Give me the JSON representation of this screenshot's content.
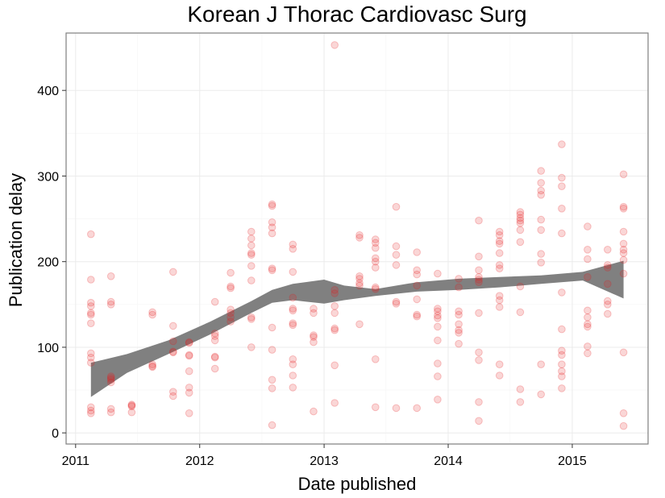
{
  "chart_data": {
    "type": "scatter",
    "title": "Korean J Thorac Cardiovasc Surg",
    "xlabel": "Date published",
    "ylabel": "Publication delay",
    "x_ticks": [
      "2011",
      "2012",
      "2013",
      "2014",
      "2015"
    ],
    "y_ticks": [
      0,
      100,
      200,
      300,
      400
    ],
    "xlim": [
      "2010-12-04",
      "2015-08-12"
    ],
    "ylim": [
      -13,
      467
    ],
    "grid": true,
    "colors": {
      "points": "#e41a1c",
      "smooth_band": "#808080",
      "panel_border": "#7f7f7f",
      "grid_major": "#ebebeb",
      "grid_minor": "#f5f5f5"
    },
    "points_alpha": 0.18,
    "points": [
      {
        "x": "2011-02-15",
        "y": 232
      },
      {
        "x": "2011-02-15",
        "y": 179
      },
      {
        "x": "2011-02-15",
        "y": 152
      },
      {
        "x": "2011-02-15",
        "y": 148
      },
      {
        "x": "2011-02-15",
        "y": 140
      },
      {
        "x": "2011-02-15",
        "y": 138
      },
      {
        "x": "2011-02-15",
        "y": 128
      },
      {
        "x": "2011-02-15",
        "y": 93
      },
      {
        "x": "2011-02-15",
        "y": 88
      },
      {
        "x": "2011-02-15",
        "y": 82
      },
      {
        "x": "2011-02-15",
        "y": 30
      },
      {
        "x": "2011-02-15",
        "y": 26
      },
      {
        "x": "2011-02-15",
        "y": 23
      },
      {
        "x": "2011-04-15",
        "y": 183
      },
      {
        "x": "2011-04-15",
        "y": 153
      },
      {
        "x": "2011-04-15",
        "y": 150
      },
      {
        "x": "2011-04-15",
        "y": 66
      },
      {
        "x": "2011-04-15",
        "y": 64
      },
      {
        "x": "2011-04-15",
        "y": 62
      },
      {
        "x": "2011-04-15",
        "y": 59
      },
      {
        "x": "2011-04-15",
        "y": 28
      },
      {
        "x": "2011-04-15",
        "y": 24
      },
      {
        "x": "2011-06-15",
        "y": 33
      },
      {
        "x": "2011-06-15",
        "y": 31
      },
      {
        "x": "2011-06-15",
        "y": 32
      },
      {
        "x": "2011-06-15",
        "y": 24
      },
      {
        "x": "2011-08-15",
        "y": 141
      },
      {
        "x": "2011-08-15",
        "y": 138
      },
      {
        "x": "2011-08-15",
        "y": 80
      },
      {
        "x": "2011-08-15",
        "y": 78
      },
      {
        "x": "2011-08-15",
        "y": 77
      },
      {
        "x": "2011-10-15",
        "y": 188
      },
      {
        "x": "2011-10-15",
        "y": 125
      },
      {
        "x": "2011-10-15",
        "y": 107
      },
      {
        "x": "2011-10-15",
        "y": 95
      },
      {
        "x": "2011-10-15",
        "y": 94
      },
      {
        "x": "2011-10-15",
        "y": 48
      },
      {
        "x": "2011-10-15",
        "y": 43
      },
      {
        "x": "2011-12-01",
        "y": 106
      },
      {
        "x": "2011-12-01",
        "y": 105
      },
      {
        "x": "2011-12-01",
        "y": 91
      },
      {
        "x": "2011-12-01",
        "y": 90
      },
      {
        "x": "2011-12-01",
        "y": 72
      },
      {
        "x": "2011-12-01",
        "y": 53
      },
      {
        "x": "2011-12-01",
        "y": 47
      },
      {
        "x": "2011-12-01",
        "y": 23
      },
      {
        "x": "2012-02-15",
        "y": 153
      },
      {
        "x": "2012-02-15",
        "y": 116
      },
      {
        "x": "2012-02-15",
        "y": 113
      },
      {
        "x": "2012-02-15",
        "y": 108
      },
      {
        "x": "2012-02-15",
        "y": 89
      },
      {
        "x": "2012-02-15",
        "y": 88
      },
      {
        "x": "2012-02-15",
        "y": 75
      },
      {
        "x": "2012-04-01",
        "y": 187
      },
      {
        "x": "2012-04-01",
        "y": 171
      },
      {
        "x": "2012-04-01",
        "y": 169
      },
      {
        "x": "2012-04-01",
        "y": 144
      },
      {
        "x": "2012-04-01",
        "y": 140
      },
      {
        "x": "2012-04-01",
        "y": 135
      },
      {
        "x": "2012-04-01",
        "y": 130
      },
      {
        "x": "2012-06-01",
        "y": 235
      },
      {
        "x": "2012-06-01",
        "y": 227
      },
      {
        "x": "2012-06-01",
        "y": 219
      },
      {
        "x": "2012-06-01",
        "y": 210
      },
      {
        "x": "2012-06-01",
        "y": 208
      },
      {
        "x": "2012-06-01",
        "y": 195
      },
      {
        "x": "2012-06-01",
        "y": 178
      },
      {
        "x": "2012-06-01",
        "y": 135
      },
      {
        "x": "2012-06-01",
        "y": 133
      },
      {
        "x": "2012-06-01",
        "y": 100
      },
      {
        "x": "2012-08-01",
        "y": 267
      },
      {
        "x": "2012-08-01",
        "y": 265
      },
      {
        "x": "2012-08-01",
        "y": 246
      },
      {
        "x": "2012-08-01",
        "y": 240
      },
      {
        "x": "2012-08-01",
        "y": 233
      },
      {
        "x": "2012-08-01",
        "y": 192
      },
      {
        "x": "2012-08-01",
        "y": 190
      },
      {
        "x": "2012-08-01",
        "y": 123
      },
      {
        "x": "2012-08-01",
        "y": 97
      },
      {
        "x": "2012-08-01",
        "y": 62
      },
      {
        "x": "2012-08-01",
        "y": 52
      },
      {
        "x": "2012-08-01",
        "y": 9
      },
      {
        "x": "2012-10-01",
        "y": 220
      },
      {
        "x": "2012-10-01",
        "y": 215
      },
      {
        "x": "2012-10-01",
        "y": 188
      },
      {
        "x": "2012-10-01",
        "y": 158
      },
      {
        "x": "2012-10-01",
        "y": 145
      },
      {
        "x": "2012-10-01",
        "y": 143
      },
      {
        "x": "2012-10-01",
        "y": 128
      },
      {
        "x": "2012-10-01",
        "y": 126
      },
      {
        "x": "2012-10-01",
        "y": 86
      },
      {
        "x": "2012-10-01",
        "y": 80
      },
      {
        "x": "2012-10-01",
        "y": 67
      },
      {
        "x": "2012-10-01",
        "y": 53
      },
      {
        "x": "2012-12-01",
        "y": 145
      },
      {
        "x": "2012-12-01",
        "y": 140
      },
      {
        "x": "2012-12-01",
        "y": 114
      },
      {
        "x": "2012-12-01",
        "y": 112
      },
      {
        "x": "2012-12-01",
        "y": 106
      },
      {
        "x": "2012-12-01",
        "y": 25
      },
      {
        "x": "2013-02-01",
        "y": 453
      },
      {
        "x": "2013-02-01",
        "y": 167
      },
      {
        "x": "2013-02-01",
        "y": 163
      },
      {
        "x": "2013-02-01",
        "y": 148
      },
      {
        "x": "2013-02-01",
        "y": 140
      },
      {
        "x": "2013-02-01",
        "y": 122
      },
      {
        "x": "2013-02-01",
        "y": 120
      },
      {
        "x": "2013-02-01",
        "y": 79
      },
      {
        "x": "2013-02-01",
        "y": 35
      },
      {
        "x": "2013-04-15",
        "y": 231
      },
      {
        "x": "2013-04-15",
        "y": 228
      },
      {
        "x": "2013-04-15",
        "y": 183
      },
      {
        "x": "2013-04-15",
        "y": 180
      },
      {
        "x": "2013-04-15",
        "y": 175
      },
      {
        "x": "2013-04-15",
        "y": 172
      },
      {
        "x": "2013-04-15",
        "y": 127
      },
      {
        "x": "2013-06-01",
        "y": 226
      },
      {
        "x": "2013-06-01",
        "y": 222
      },
      {
        "x": "2013-06-01",
        "y": 216
      },
      {
        "x": "2013-06-01",
        "y": 204
      },
      {
        "x": "2013-06-01",
        "y": 200
      },
      {
        "x": "2013-06-01",
        "y": 193
      },
      {
        "x": "2013-06-01",
        "y": 170
      },
      {
        "x": "2013-06-01",
        "y": 168
      },
      {
        "x": "2013-06-01",
        "y": 86
      },
      {
        "x": "2013-06-01",
        "y": 30
      },
      {
        "x": "2013-08-01",
        "y": 264
      },
      {
        "x": "2013-08-01",
        "y": 218
      },
      {
        "x": "2013-08-01",
        "y": 208
      },
      {
        "x": "2013-08-01",
        "y": 196
      },
      {
        "x": "2013-08-01",
        "y": 153
      },
      {
        "x": "2013-08-01",
        "y": 151
      },
      {
        "x": "2013-08-01",
        "y": 29
      },
      {
        "x": "2013-10-01",
        "y": 211
      },
      {
        "x": "2013-10-01",
        "y": 190
      },
      {
        "x": "2013-10-01",
        "y": 185
      },
      {
        "x": "2013-10-01",
        "y": 172
      },
      {
        "x": "2013-10-01",
        "y": 156
      },
      {
        "x": "2013-10-01",
        "y": 138
      },
      {
        "x": "2013-10-01",
        "y": 136
      },
      {
        "x": "2013-10-01",
        "y": 29
      },
      {
        "x": "2013-12-01",
        "y": 186
      },
      {
        "x": "2013-12-01",
        "y": 145
      },
      {
        "x": "2013-12-01",
        "y": 142
      },
      {
        "x": "2013-12-01",
        "y": 137
      },
      {
        "x": "2013-12-01",
        "y": 134
      },
      {
        "x": "2013-12-01",
        "y": 124
      },
      {
        "x": "2013-12-01",
        "y": 108
      },
      {
        "x": "2013-12-01",
        "y": 81
      },
      {
        "x": "2013-12-01",
        "y": 66
      },
      {
        "x": "2013-12-01",
        "y": 39
      },
      {
        "x": "2014-02-01",
        "y": 180
      },
      {
        "x": "2014-02-01",
        "y": 170
      },
      {
        "x": "2014-02-01",
        "y": 142
      },
      {
        "x": "2014-02-01",
        "y": 138
      },
      {
        "x": "2014-02-01",
        "y": 127
      },
      {
        "x": "2014-02-01",
        "y": 120
      },
      {
        "x": "2014-02-01",
        "y": 117
      },
      {
        "x": "2014-02-01",
        "y": 104
      },
      {
        "x": "2014-04-01",
        "y": 248
      },
      {
        "x": "2014-04-01",
        "y": 206
      },
      {
        "x": "2014-04-01",
        "y": 190
      },
      {
        "x": "2014-04-01",
        "y": 182
      },
      {
        "x": "2014-04-01",
        "y": 179
      },
      {
        "x": "2014-04-01",
        "y": 176
      },
      {
        "x": "2014-04-01",
        "y": 140
      },
      {
        "x": "2014-04-01",
        "y": 94
      },
      {
        "x": "2014-04-01",
        "y": 85
      },
      {
        "x": "2014-04-01",
        "y": 36
      },
      {
        "x": "2014-04-01",
        "y": 14
      },
      {
        "x": "2014-06-01",
        "y": 235
      },
      {
        "x": "2014-06-01",
        "y": 231
      },
      {
        "x": "2014-06-01",
        "y": 224
      },
      {
        "x": "2014-06-01",
        "y": 221
      },
      {
        "x": "2014-06-01",
        "y": 210
      },
      {
        "x": "2014-06-01",
        "y": 196
      },
      {
        "x": "2014-06-01",
        "y": 192
      },
      {
        "x": "2014-06-01",
        "y": 160
      },
      {
        "x": "2014-06-01",
        "y": 155
      },
      {
        "x": "2014-06-01",
        "y": 147
      },
      {
        "x": "2014-06-01",
        "y": 80
      },
      {
        "x": "2014-06-01",
        "y": 67
      },
      {
        "x": "2014-08-01",
        "y": 258
      },
      {
        "x": "2014-08-01",
        "y": 255
      },
      {
        "x": "2014-08-01",
        "y": 251
      },
      {
        "x": "2014-08-01",
        "y": 248
      },
      {
        "x": "2014-08-01",
        "y": 245
      },
      {
        "x": "2014-08-01",
        "y": 237
      },
      {
        "x": "2014-08-01",
        "y": 223
      },
      {
        "x": "2014-08-01",
        "y": 171
      },
      {
        "x": "2014-08-01",
        "y": 141
      },
      {
        "x": "2014-08-01",
        "y": 51
      },
      {
        "x": "2014-08-01",
        "y": 36
      },
      {
        "x": "2014-10-01",
        "y": 306
      },
      {
        "x": "2014-10-01",
        "y": 292
      },
      {
        "x": "2014-10-01",
        "y": 283
      },
      {
        "x": "2014-10-01",
        "y": 278
      },
      {
        "x": "2014-10-01",
        "y": 249
      },
      {
        "x": "2014-10-01",
        "y": 237
      },
      {
        "x": "2014-10-01",
        "y": 209
      },
      {
        "x": "2014-10-01",
        "y": 199
      },
      {
        "x": "2014-10-01",
        "y": 80
      },
      {
        "x": "2014-10-01",
        "y": 45
      },
      {
        "x": "2014-12-01",
        "y": 337
      },
      {
        "x": "2014-12-01",
        "y": 298
      },
      {
        "x": "2014-12-01",
        "y": 288
      },
      {
        "x": "2014-12-01",
        "y": 262
      },
      {
        "x": "2014-12-01",
        "y": 233
      },
      {
        "x": "2014-12-01",
        "y": 164
      },
      {
        "x": "2014-12-01",
        "y": 121
      },
      {
        "x": "2014-12-01",
        "y": 96
      },
      {
        "x": "2014-12-01",
        "y": 91
      },
      {
        "x": "2014-12-01",
        "y": 80
      },
      {
        "x": "2014-12-01",
        "y": 72
      },
      {
        "x": "2014-12-01",
        "y": 66
      },
      {
        "x": "2014-12-01",
        "y": 52
      },
      {
        "x": "2015-02-15",
        "y": 241
      },
      {
        "x": "2015-02-15",
        "y": 214
      },
      {
        "x": "2015-02-15",
        "y": 203
      },
      {
        "x": "2015-02-15",
        "y": 182
      },
      {
        "x": "2015-02-15",
        "y": 143
      },
      {
        "x": "2015-02-15",
        "y": 135
      },
      {
        "x": "2015-02-15",
        "y": 127
      },
      {
        "x": "2015-02-15",
        "y": 124
      },
      {
        "x": "2015-02-15",
        "y": 101
      },
      {
        "x": "2015-02-15",
        "y": 93
      },
      {
        "x": "2015-04-15",
        "y": 214
      },
      {
        "x": "2015-04-15",
        "y": 196
      },
      {
        "x": "2015-04-15",
        "y": 193
      },
      {
        "x": "2015-04-15",
        "y": 174
      },
      {
        "x": "2015-04-15",
        "y": 154
      },
      {
        "x": "2015-04-15",
        "y": 150
      },
      {
        "x": "2015-04-15",
        "y": 139
      },
      {
        "x": "2015-06-01",
        "y": 302
      },
      {
        "x": "2015-06-01",
        "y": 264
      },
      {
        "x": "2015-06-01",
        "y": 262
      },
      {
        "x": "2015-06-01",
        "y": 235
      },
      {
        "x": "2015-06-01",
        "y": 221
      },
      {
        "x": "2015-06-01",
        "y": 214
      },
      {
        "x": "2015-06-01",
        "y": 210
      },
      {
        "x": "2015-06-01",
        "y": 202
      },
      {
        "x": "2015-06-01",
        "y": 186
      },
      {
        "x": "2015-06-01",
        "y": 94
      },
      {
        "x": "2015-06-01",
        "y": 23
      },
      {
        "x": "2015-06-01",
        "y": 8
      }
    ],
    "smooth": {
      "type": "loess confidence band",
      "x": [
        "2011-02-15",
        "2011-06-01",
        "2011-10-01",
        "2012-02-01",
        "2012-06-01",
        "2012-08-01",
        "2012-10-01",
        "2013-01-01",
        "2013-03-01",
        "2013-06-01",
        "2013-10-01",
        "2014-02-01",
        "2014-06-01",
        "2014-10-01",
        "2015-02-01",
        "2015-06-01"
      ],
      "lower": [
        42,
        70,
        92,
        115,
        140,
        152,
        155,
        151,
        155,
        160,
        165,
        167,
        170,
        174,
        178,
        157
      ],
      "upper": [
        82,
        92,
        108,
        130,
        154,
        167,
        174,
        179,
        172,
        168,
        176,
        180,
        182,
        184,
        188,
        201
      ]
    }
  }
}
